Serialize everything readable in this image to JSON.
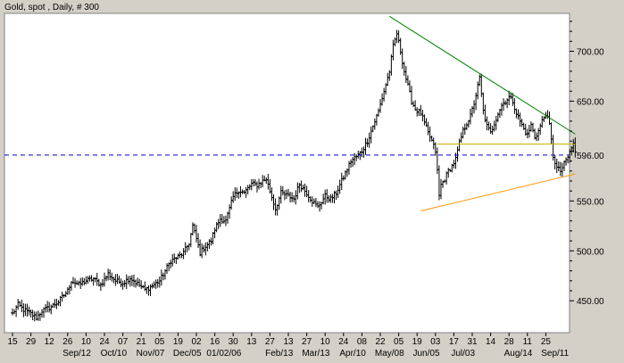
{
  "colors": {
    "background": "#d4d0c8",
    "plot_area": "#ffffff",
    "price_bars": "#000000",
    "resistance_line": "#008000",
    "support_line": "#ff9900",
    "horizontal_line": "#c8b400",
    "current_price_line": "#0000cc",
    "current_price_label": "#0000cc"
  },
  "chart_data": {
    "type": "ohlc",
    "title": "Gold, spot , Daily, # 300",
    "xlabel": "",
    "ylabel": "",
    "grid": false,
    "y_axis_position": "right",
    "ylim": [
      418,
      738
    ],
    "y_ticks": [
      450,
      500,
      550,
      600,
      650,
      700
    ],
    "y_tick_labels": [
      "450.00",
      "500.00",
      "550.00",
      "",
      "650.00",
      "700.00"
    ],
    "current_price": 596.0,
    "current_price_label": "596.00",
    "x_day_labels": [
      "15",
      "29",
      "12",
      "26",
      "10",
      "24",
      "07",
      "21",
      "05",
      "19",
      "02",
      "16",
      "30",
      "13",
      "27",
      "13",
      "27",
      "10",
      "24",
      "08",
      "22",
      "05",
      "19",
      "03",
      "17",
      "31",
      "14",
      "28",
      "11",
      "25"
    ],
    "x_month_labels": [
      "Sep/12",
      "Oct/10",
      "Nov/07",
      "Dec/05",
      "01/02/06",
      "Feb/13",
      "Mar/13",
      "Apr/10",
      "May/08",
      "Jun/05",
      "Jul/03",
      "Aug/14",
      "Sep/11"
    ],
    "x_month_label_positions": [
      3.5,
      5.5,
      7.5,
      9.5,
      11.5,
      14.5,
      16.5,
      18.5,
      20.5,
      22.5,
      24.5,
      27.5,
      29.5
    ],
    "trendlines": [
      {
        "name": "resistance",
        "color": "#008000",
        "points": [
          [
            20.5,
            735
          ],
          [
            30.6,
            617
          ]
        ]
      },
      {
        "name": "support",
        "color": "#ff9900",
        "points": [
          [
            22.2,
            540
          ],
          [
            30.6,
            577
          ]
        ]
      },
      {
        "name": "horizontal",
        "color": "#c8b400",
        "points": [
          [
            23.1,
            607
          ],
          [
            30.6,
            607
          ]
        ]
      }
    ],
    "price_anchors": [
      [
        0.0,
        437
      ],
      [
        0.3,
        446
      ],
      [
        0.6,
        441
      ],
      [
        1.0,
        437
      ],
      [
        1.3,
        433
      ],
      [
        1.6,
        440
      ],
      [
        2.0,
        443
      ],
      [
        2.5,
        449
      ],
      [
        3.0,
        460
      ],
      [
        3.2,
        470
      ],
      [
        3.6,
        466
      ],
      [
        4.0,
        470
      ],
      [
        4.4,
        472
      ],
      [
        4.8,
        466
      ],
      [
        5.2,
        477
      ],
      [
        5.6,
        470
      ],
      [
        6.0,
        468
      ],
      [
        6.4,
        473
      ],
      [
        6.8,
        467
      ],
      [
        7.2,
        461
      ],
      [
        7.6,
        465
      ],
      [
        8.0,
        470
      ],
      [
        8.3,
        480
      ],
      [
        8.6,
        490
      ],
      [
        9.0,
        494
      ],
      [
        9.3,
        498
      ],
      [
        9.6,
        508
      ],
      [
        9.8,
        525
      ],
      [
        10.0,
        512
      ],
      [
        10.2,
        498
      ],
      [
        10.4,
        503
      ],
      [
        10.8,
        510
      ],
      [
        11.0,
        522
      ],
      [
        11.3,
        532
      ],
      [
        11.6,
        530
      ],
      [
        12.0,
        554
      ],
      [
        12.3,
        561
      ],
      [
        12.6,
        558
      ],
      [
        13.0,
        567
      ],
      [
        13.3,
        566
      ],
      [
        13.6,
        570
      ],
      [
        13.8,
        572
      ],
      [
        14.0,
        560
      ],
      [
        14.3,
        542
      ],
      [
        14.6,
        558
      ],
      [
        15.0,
        555
      ],
      [
        15.3,
        552
      ],
      [
        15.6,
        567
      ],
      [
        16.0,
        558
      ],
      [
        16.3,
        550
      ],
      [
        16.6,
        544
      ],
      [
        17.0,
        555
      ],
      [
        17.3,
        552
      ],
      [
        17.6,
        558
      ],
      [
        18.0,
        574
      ],
      [
        18.4,
        590
      ],
      [
        18.8,
        596
      ],
      [
        19.0,
        600
      ],
      [
        19.3,
        610
      ],
      [
        19.6,
        625
      ],
      [
        19.9,
        640
      ],
      [
        20.2,
        660
      ],
      [
        20.5,
        680
      ],
      [
        20.7,
        705
      ],
      [
        20.9,
        718
      ],
      [
        21.1,
        700
      ],
      [
        21.3,
        680
      ],
      [
        21.5,
        665
      ],
      [
        21.7,
        650
      ],
      [
        21.9,
        642
      ],
      [
        22.2,
        638
      ],
      [
        22.4,
        628
      ],
      [
        22.6,
        618
      ],
      [
        22.8,
        610
      ],
      [
        23.0,
        600
      ],
      [
        23.1,
        580
      ],
      [
        23.2,
        555
      ],
      [
        23.3,
        566
      ],
      [
        23.5,
        572
      ],
      [
        23.7,
        580
      ],
      [
        23.9,
        585
      ],
      [
        24.1,
        592
      ],
      [
        24.3,
        608
      ],
      [
        24.5,
        620
      ],
      [
        24.7,
        628
      ],
      [
        24.9,
        635
      ],
      [
        25.1,
        648
      ],
      [
        25.3,
        665
      ],
      [
        25.4,
        673
      ],
      [
        25.6,
        640
      ],
      [
        25.8,
        625
      ],
      [
        26.0,
        618
      ],
      [
        26.2,
        628
      ],
      [
        26.4,
        638
      ],
      [
        26.6,
        646
      ],
      [
        26.8,
        650
      ],
      [
        27.0,
        654
      ],
      [
        27.2,
        650
      ],
      [
        27.4,
        638
      ],
      [
        27.6,
        630
      ],
      [
        27.8,
        622
      ],
      [
        28.0,
        616
      ],
      [
        28.2,
        626
      ],
      [
        28.4,
        614
      ],
      [
        28.6,
        620
      ],
      [
        28.8,
        630
      ],
      [
        29.0,
        638
      ],
      [
        29.2,
        626
      ],
      [
        29.4,
        595
      ],
      [
        29.6,
        583
      ],
      [
        29.8,
        580
      ],
      [
        30.0,
        587
      ],
      [
        30.2,
        594
      ],
      [
        30.4,
        603
      ],
      [
        30.5,
        608
      ],
      [
        30.6,
        598
      ]
    ]
  }
}
